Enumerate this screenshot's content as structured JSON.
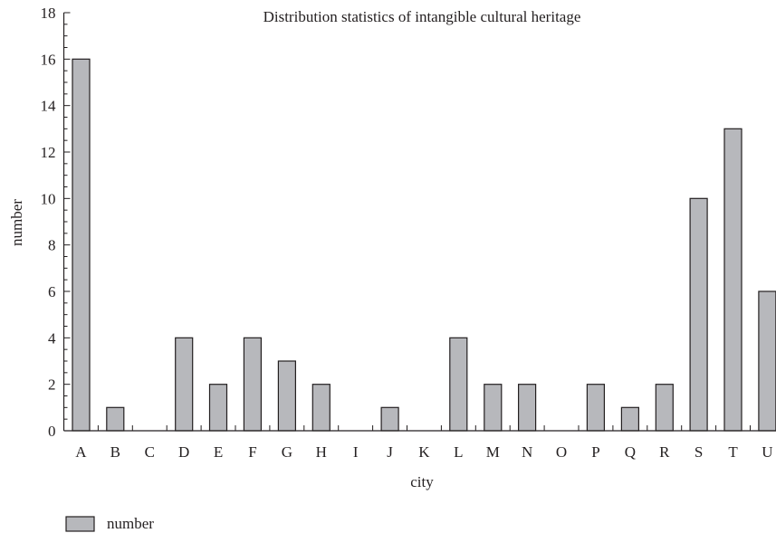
{
  "chart_data": {
    "type": "bar",
    "title": "Distribution statistics of intangible cultural heritage",
    "xlabel": "city",
    "ylabel": "number",
    "categories": [
      "A",
      "B",
      "C",
      "D",
      "E",
      "F",
      "G",
      "H",
      "I",
      "J",
      "K",
      "L",
      "M",
      "N",
      "O",
      "P",
      "Q",
      "R",
      "S",
      "T",
      "U"
    ],
    "series": [
      {
        "name": "number",
        "values": [
          16,
          1,
          0,
          4,
          2,
          4,
          3,
          2,
          0,
          1,
          0,
          4,
          2,
          2,
          0,
          2,
          1,
          2,
          10,
          13,
          6
        ]
      }
    ],
    "ylim": [
      0,
      18
    ],
    "yticks": [
      0,
      2,
      4,
      6,
      8,
      10,
      12,
      14,
      16,
      18
    ],
    "grid": false,
    "legend_position": "bottom-left",
    "colors": {
      "bar_fill": "#b7b8bc",
      "bar_stroke": "#231f20",
      "axis": "#231f20"
    }
  }
}
